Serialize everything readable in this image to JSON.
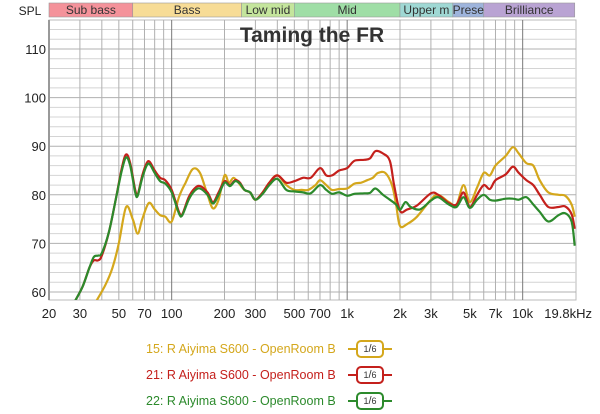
{
  "chart_data": {
    "type": "line",
    "title": "Taming the FR",
    "ylabel": "SPL",
    "xlabel": "",
    "xscale": "log",
    "xlim": [
      20,
      19800
    ],
    "ylim": [
      58,
      116
    ],
    "grid": true,
    "x_ticks": [
      {
        "value": 20,
        "label": "20"
      },
      {
        "value": 30,
        "label": "30"
      },
      {
        "value": 50,
        "label": "50"
      },
      {
        "value": 70,
        "label": "70"
      },
      {
        "value": 100,
        "label": "100"
      },
      {
        "value": 200,
        "label": "200"
      },
      {
        "value": 300,
        "label": "300"
      },
      {
        "value": 500,
        "label": "500"
      },
      {
        "value": 700,
        "label": "700"
      },
      {
        "value": 1000,
        "label": "1k"
      },
      {
        "value": 2000,
        "label": "2k"
      },
      {
        "value": 3000,
        "label": "3k"
      },
      {
        "value": 5000,
        "label": "5k"
      },
      {
        "value": 7000,
        "label": "7k"
      },
      {
        "value": 10000,
        "label": "10k"
      },
      {
        "value": 19800,
        "label": "19.8kHz"
      }
    ],
    "y_ticks": [
      60,
      70,
      80,
      90,
      100,
      110
    ],
    "bands": [
      {
        "label": "Sub bass",
        "from": 20,
        "to": 60,
        "color": "#f4929a"
      },
      {
        "label": "Bass",
        "from": 60,
        "to": 250,
        "color": "#f7dc96"
      },
      {
        "label": "Low mid",
        "from": 250,
        "to": 500,
        "color": "#c4e59c"
      },
      {
        "label": "Mid",
        "from": 500,
        "to": 2000,
        "color": "#9fdea6"
      },
      {
        "label": "Upper m",
        "from": 2000,
        "to": 4000,
        "color": "#9fd8d4"
      },
      {
        "label": "Prese",
        "from": 4000,
        "to": 6000,
        "color": "#9eb4dc"
      },
      {
        "label": "Brilliance",
        "from": 6000,
        "to": 19800,
        "color": "#b9a3d3"
      }
    ],
    "series": [
      {
        "name": "15: R Aiyima S600 - OpenRoom B",
        "color": "#d4a71c",
        "smoothing": "1/6",
        "points": [
          [
            37,
            58
          ],
          [
            42,
            61.5
          ],
          [
            46,
            65
          ],
          [
            50,
            70
          ],
          [
            55,
            77.5
          ],
          [
            60,
            75
          ],
          [
            64,
            72
          ],
          [
            68,
            75
          ],
          [
            74,
            78.3
          ],
          [
            80,
            77
          ],
          [
            86,
            75.8
          ],
          [
            92,
            75.5
          ],
          [
            100,
            74.5
          ],
          [
            110,
            79.5
          ],
          [
            120,
            82.5
          ],
          [
            132,
            85.3
          ],
          [
            145,
            84.5
          ],
          [
            160,
            80
          ],
          [
            172,
            77.2
          ],
          [
            185,
            79
          ],
          [
            200,
            84
          ],
          [
            212,
            82.5
          ],
          [
            225,
            83.5
          ],
          [
            240,
            82.5
          ],
          [
            260,
            81
          ],
          [
            280,
            80.5
          ],
          [
            300,
            79
          ],
          [
            330,
            80.5
          ],
          [
            360,
            82.5
          ],
          [
            400,
            84
          ],
          [
            450,
            82
          ],
          [
            500,
            81
          ],
          [
            550,
            81
          ],
          [
            600,
            81
          ],
          [
            660,
            82
          ],
          [
            700,
            83
          ],
          [
            760,
            82
          ],
          [
            820,
            81
          ],
          [
            900,
            81.2
          ],
          [
            1000,
            81.3
          ],
          [
            1100,
            82.3
          ],
          [
            1200,
            82.5
          ],
          [
            1300,
            83
          ],
          [
            1400,
            83.5
          ],
          [
            1500,
            84.5
          ],
          [
            1650,
            84.5
          ],
          [
            1800,
            82
          ],
          [
            1900,
            78
          ],
          [
            2000,
            73.6
          ],
          [
            2200,
            74
          ],
          [
            2500,
            75.5
          ],
          [
            3000,
            79
          ],
          [
            3300,
            80
          ],
          [
            3800,
            78.5
          ],
          [
            4200,
            78
          ],
          [
            4600,
            82
          ],
          [
            5000,
            78.5
          ],
          [
            5500,
            81.5
          ],
          [
            6000,
            84.5
          ],
          [
            6500,
            84
          ],
          [
            7000,
            86
          ],
          [
            8000,
            88
          ],
          [
            8800,
            89.8
          ],
          [
            9500,
            88.5
          ],
          [
            10500,
            86.5
          ],
          [
            11500,
            86
          ],
          [
            12500,
            83
          ],
          [
            14000,
            80.5
          ],
          [
            16000,
            80
          ],
          [
            17500,
            79.8
          ],
          [
            19000,
            78
          ],
          [
            19800,
            75.5
          ]
        ]
      },
      {
        "name": "21: R Aiyima S600 - OpenRoom B",
        "color": "#c4201c",
        "smoothing": "1/6",
        "points": [
          [
            28,
            58
          ],
          [
            31,
            61
          ],
          [
            34,
            65
          ],
          [
            36,
            66.5
          ],
          [
            38,
            66.5
          ],
          [
            40,
            67.5
          ],
          [
            44,
            72.5
          ],
          [
            48,
            79
          ],
          [
            52,
            85.5
          ],
          [
            55,
            88.3
          ],
          [
            58,
            86.5
          ],
          [
            62,
            81
          ],
          [
            64,
            80
          ],
          [
            68,
            84
          ],
          [
            72,
            86.5
          ],
          [
            75,
            86.8
          ],
          [
            80,
            85
          ],
          [
            86,
            83.5
          ],
          [
            92,
            83
          ],
          [
            100,
            81
          ],
          [
            110,
            76.5
          ],
          [
            115,
            76
          ],
          [
            125,
            79.5
          ],
          [
            135,
            81.3
          ],
          [
            145,
            81.8
          ],
          [
            160,
            80.5
          ],
          [
            172,
            78.5
          ],
          [
            185,
            80.5
          ],
          [
            200,
            82.8
          ],
          [
            215,
            82
          ],
          [
            230,
            83
          ],
          [
            245,
            82.5
          ],
          [
            260,
            81
          ],
          [
            280,
            80.5
          ],
          [
            300,
            79
          ],
          [
            330,
            80.5
          ],
          [
            360,
            82.5
          ],
          [
            400,
            84
          ],
          [
            450,
            82.5
          ],
          [
            500,
            82.8
          ],
          [
            560,
            83.5
          ],
          [
            620,
            83.5
          ],
          [
            700,
            85.5
          ],
          [
            760,
            84
          ],
          [
            820,
            84
          ],
          [
            900,
            85
          ],
          [
            1000,
            85.5
          ],
          [
            1100,
            87
          ],
          [
            1250,
            87.2
          ],
          [
            1350,
            87.5
          ],
          [
            1450,
            89
          ],
          [
            1600,
            88.5
          ],
          [
            1750,
            87
          ],
          [
            1850,
            82
          ],
          [
            2000,
            76.7
          ],
          [
            2200,
            77
          ],
          [
            2500,
            77.8
          ],
          [
            3000,
            80.3
          ],
          [
            3300,
            80
          ],
          [
            3800,
            78.3
          ],
          [
            4200,
            78
          ],
          [
            4600,
            80.5
          ],
          [
            5000,
            77.5
          ],
          [
            5500,
            80
          ],
          [
            6000,
            82
          ],
          [
            6500,
            81.2
          ],
          [
            7000,
            83
          ],
          [
            8000,
            84.2
          ],
          [
            8800,
            85.8
          ],
          [
            9500,
            84.5
          ],
          [
            10500,
            83
          ],
          [
            11500,
            82
          ],
          [
            12500,
            80
          ],
          [
            14000,
            77.5
          ],
          [
            16000,
            77.5
          ],
          [
            17500,
            77.6
          ],
          [
            19000,
            76
          ],
          [
            19800,
            73
          ]
        ]
      },
      {
        "name": "22: R Aiyima S600 - OpenRoom B",
        "color": "#2c8a2c",
        "smoothing": "1/6",
        "points": [
          [
            28,
            58
          ],
          [
            31,
            61
          ],
          [
            34,
            65
          ],
          [
            36,
            67.2
          ],
          [
            38,
            67.5
          ],
          [
            40,
            68
          ],
          [
            44,
            72.5
          ],
          [
            48,
            79
          ],
          [
            52,
            85
          ],
          [
            55,
            87.7
          ],
          [
            58,
            86
          ],
          [
            62,
            80.5
          ],
          [
            64,
            79.8
          ],
          [
            68,
            83.5
          ],
          [
            72,
            86
          ],
          [
            75,
            86.3
          ],
          [
            80,
            84.5
          ],
          [
            86,
            82.8
          ],
          [
            92,
            82.3
          ],
          [
            100,
            80.5
          ],
          [
            110,
            76.2
          ],
          [
            115,
            75.8
          ],
          [
            125,
            79
          ],
          [
            135,
            80.8
          ],
          [
            145,
            81.3
          ],
          [
            160,
            80
          ],
          [
            172,
            78.2
          ],
          [
            185,
            80
          ],
          [
            200,
            82.5
          ],
          [
            215,
            81.8
          ],
          [
            230,
            82.8
          ],
          [
            245,
            82.3
          ],
          [
            260,
            81
          ],
          [
            280,
            80.5
          ],
          [
            300,
            79
          ],
          [
            330,
            80.2
          ],
          [
            360,
            82
          ],
          [
            400,
            83.3
          ],
          [
            450,
            81
          ],
          [
            500,
            80.7
          ],
          [
            560,
            80.5
          ],
          [
            620,
            80.3
          ],
          [
            700,
            82
          ],
          [
            760,
            81
          ],
          [
            820,
            80.2
          ],
          [
            900,
            80.5
          ],
          [
            1000,
            79.8
          ],
          [
            1100,
            80.2
          ],
          [
            1250,
            80.3
          ],
          [
            1350,
            80.4
          ],
          [
            1450,
            81.3
          ],
          [
            1600,
            80
          ],
          [
            1750,
            79
          ],
          [
            1900,
            78
          ],
          [
            2000,
            76.9
          ],
          [
            2150,
            78.5
          ],
          [
            2300,
            77.5
          ],
          [
            2600,
            77
          ],
          [
            3000,
            78.8
          ],
          [
            3300,
            79.5
          ],
          [
            3800,
            78
          ],
          [
            4200,
            77.5
          ],
          [
            4600,
            79.5
          ],
          [
            5000,
            77.3
          ],
          [
            5500,
            79
          ],
          [
            6000,
            80
          ],
          [
            6500,
            79
          ],
          [
            7000,
            78.8
          ],
          [
            8000,
            79.2
          ],
          [
            8800,
            79.2
          ],
          [
            9500,
            79
          ],
          [
            10500,
            79.5
          ],
          [
            11500,
            78
          ],
          [
            12500,
            76.5
          ],
          [
            14000,
            74.5
          ],
          [
            16000,
            75.8
          ],
          [
            17500,
            76.2
          ],
          [
            19000,
            74.5
          ],
          [
            19800,
            69.5
          ]
        ]
      }
    ]
  },
  "legend": {
    "items": [
      {
        "label": "15: R Aiyima S600 - OpenRoom B",
        "smoothing_num": "1",
        "smoothing_den": "6",
        "color": "#d4a71c"
      },
      {
        "label": "21: R Aiyima S600 - OpenRoom B",
        "smoothing_num": "1",
        "smoothing_den": "6",
        "color": "#c4201c"
      },
      {
        "label": "22: R Aiyima S600 - OpenRoom B",
        "smoothing_num": "1",
        "smoothing_den": "6",
        "color": "#2c8a2c"
      }
    ]
  },
  "colors": {
    "grid_minor": "#d4d4d4",
    "grid_major": "#b0b0b0",
    "grid_decade": "#7a7a7a",
    "axis_text": "#222222",
    "title": "#333333"
  }
}
